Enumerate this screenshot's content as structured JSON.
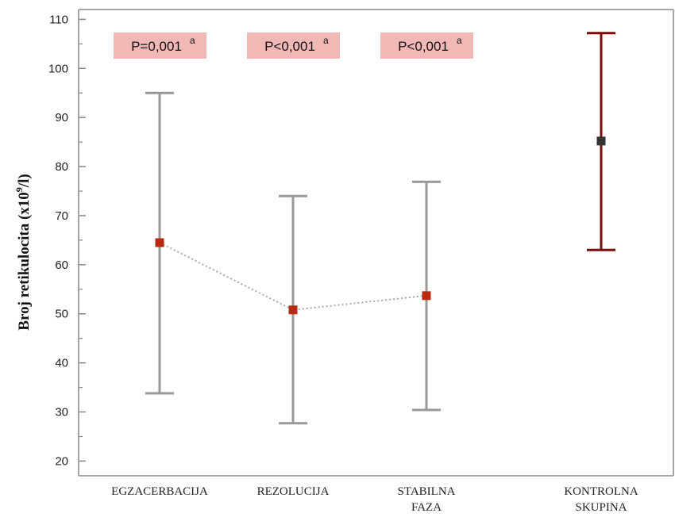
{
  "chart_data": {
    "type": "errorbar",
    "ylabel": {
      "main": "Broj  retikulocita  (x10",
      "sup": "9",
      "tail": "/l)"
    },
    "ylim": [
      17,
      112
    ],
    "yticks": [
      20,
      30,
      40,
      50,
      60,
      70,
      80,
      90,
      100,
      110
    ],
    "grid": false,
    "categories": [
      {
        "lines": [
          "EGZACERBACIJA"
        ]
      },
      {
        "lines": [
          "REZOLUCIJA"
        ]
      },
      {
        "lines": [
          "STABILNA",
          "FAZA"
        ]
      },
      {
        "lines": [
          "KONTROLNA",
          "SKUPINA"
        ]
      }
    ],
    "series": [
      {
        "group": "patients",
        "color": "#999999",
        "marker_color": "#b52a10",
        "connected": true,
        "points": [
          {
            "category": 0,
            "mean": 64.5,
            "low": 33.8,
            "high": 95.0
          },
          {
            "category": 1,
            "mean": 50.8,
            "low": 27.7,
            "high": 74.0
          },
          {
            "category": 2,
            "mean": 53.7,
            "low": 30.4,
            "high": 76.9
          }
        ]
      },
      {
        "group": "control",
        "color": "#7a0c0c",
        "marker_color": "#333333",
        "connected": false,
        "points": [
          {
            "category": 3,
            "mean": 85.2,
            "low": 63.0,
            "high": 107.2
          }
        ]
      }
    ],
    "annotations": [
      {
        "category": 0,
        "text": "P=0,001",
        "sup": "a"
      },
      {
        "category": 1,
        "text": "P<0,001",
        "sup": "a"
      },
      {
        "category": 2,
        "text": "P<0,001",
        "sup": "a"
      }
    ],
    "annotation_color": "#f2b8b5"
  }
}
